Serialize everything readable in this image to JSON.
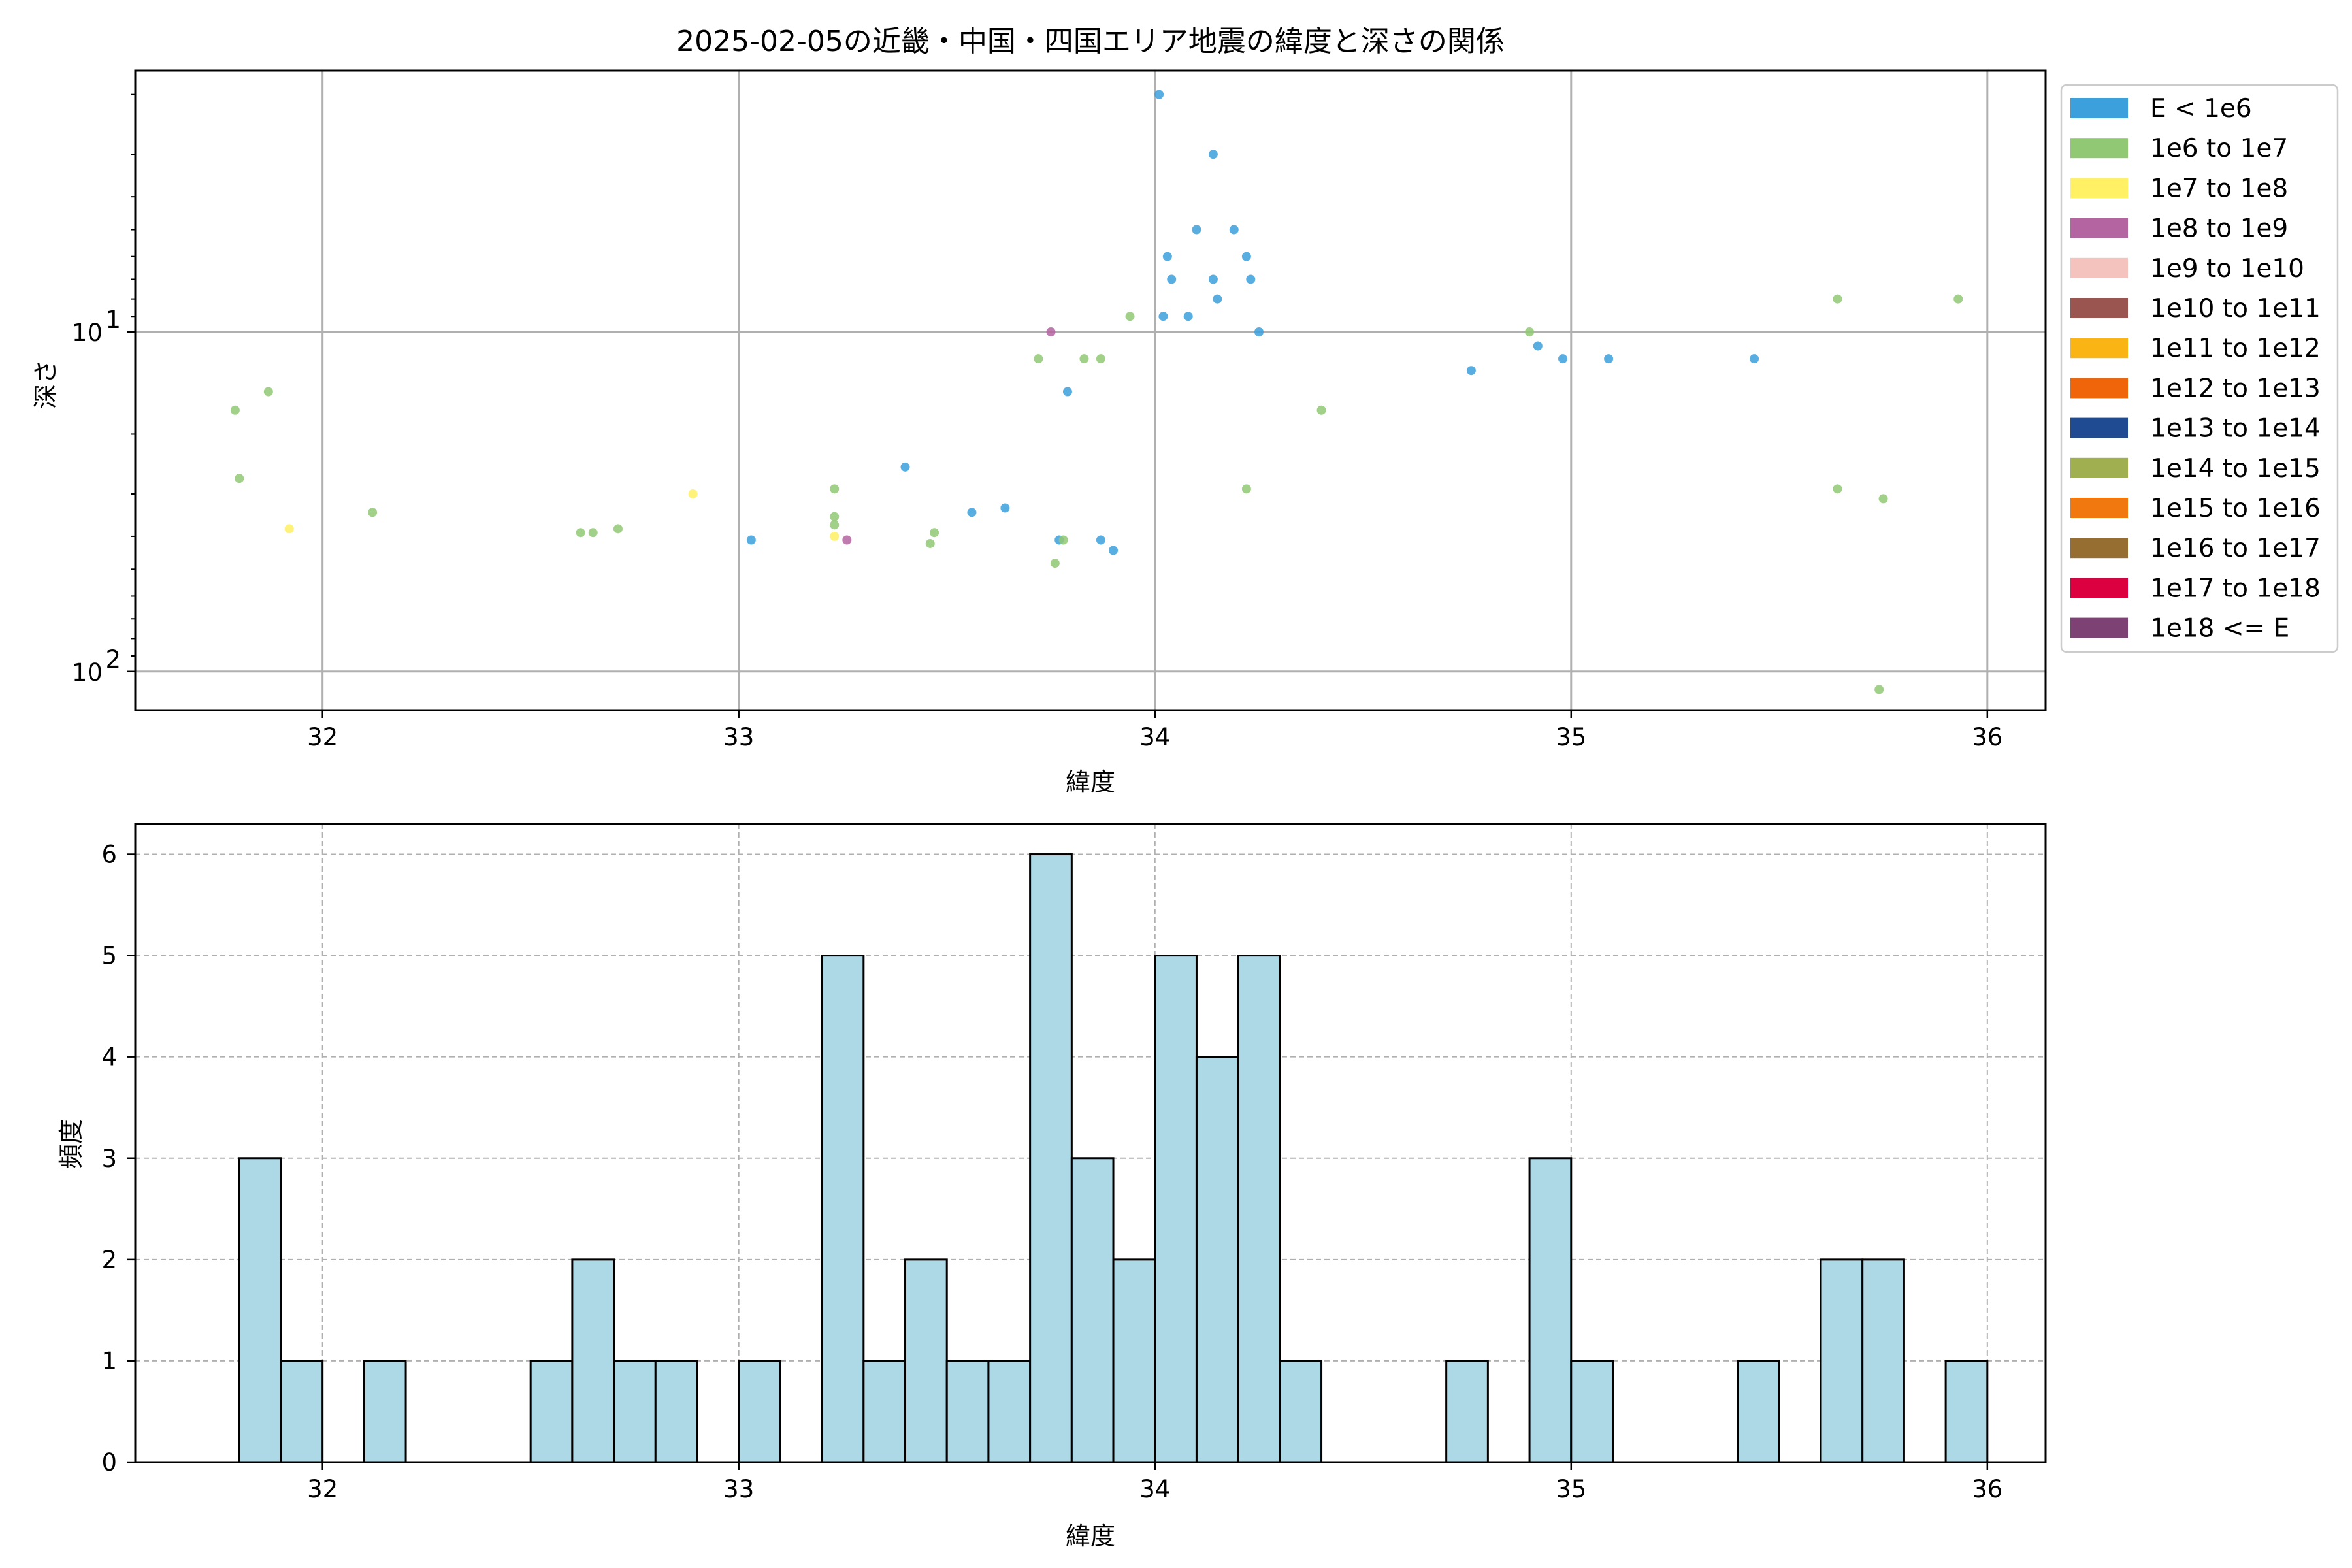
{
  "chart_data": [
    {
      "type": "scatter",
      "title": "2025-02-05の近畿・中国・四国エリア地震の緯度と深さの関係",
      "xlabel": "緯度",
      "ylabel": "深さ",
      "xlim": [
        31.55,
        36.14
      ],
      "ylim": [
        130,
        1.7
      ],
      "yscale": "log",
      "y_inverted": true,
      "grid": true,
      "xticks": [
        32,
        33,
        34,
        35,
        36
      ],
      "yticks": [
        {
          "value": 10,
          "base": "10",
          "exp": "1"
        },
        {
          "value": 100,
          "base": "10",
          "exp": "2"
        }
      ],
      "legend_position": "right-outside-top",
      "legend": [
        {
          "label": "E < 1e6",
          "color": "#3ca0dc"
        },
        {
          "label": "1e6 to 1e7",
          "color": "#91c873"
        },
        {
          "label": "1e7 to 1e8",
          "color": "#fff064"
        },
        {
          "label": "1e8 to 1e9",
          "color": "#b464a0"
        },
        {
          "label": "1e9 to 1e10",
          "color": "#f5c3be"
        },
        {
          "label": "1e10 to 1e11",
          "color": "#9b5550"
        },
        {
          "label": "1e11 to 1e12",
          "color": "#fab414"
        },
        {
          "label": "1e12 to 1e13",
          "color": "#f0640a"
        },
        {
          "label": "1e13 to 1e14",
          "color": "#1e4b91"
        },
        {
          "label": "1e14 to 1e15",
          "color": "#a0af50"
        },
        {
          "label": "1e15 to 1e16",
          "color": "#f0780f"
        },
        {
          "label": "1e16 to 1e17",
          "color": "#966e32"
        },
        {
          "label": "1e17 to 1e18",
          "color": "#dc0041"
        },
        {
          "label": "1e18 <= E",
          "color": "#7d4173"
        }
      ],
      "points": [
        {
          "x": 34.01,
          "y": 2,
          "c": 0
        },
        {
          "x": 34.14,
          "y": 3,
          "c": 0
        },
        {
          "x": 34.1,
          "y": 5,
          "c": 0
        },
        {
          "x": 34.19,
          "y": 5,
          "c": 0
        },
        {
          "x": 34.03,
          "y": 6,
          "c": 0
        },
        {
          "x": 34.22,
          "y": 6,
          "c": 0
        },
        {
          "x": 34.04,
          "y": 7,
          "c": 0
        },
        {
          "x": 34.14,
          "y": 7,
          "c": 0
        },
        {
          "x": 34.23,
          "y": 7,
          "c": 0
        },
        {
          "x": 34.15,
          "y": 8,
          "c": 0
        },
        {
          "x": 34.02,
          "y": 9,
          "c": 0
        },
        {
          "x": 34.08,
          "y": 9,
          "c": 0
        },
        {
          "x": 34.25,
          "y": 10,
          "c": 0
        },
        {
          "x": 34.92,
          "y": 11,
          "c": 0
        },
        {
          "x": 34.98,
          "y": 12,
          "c": 0
        },
        {
          "x": 35.09,
          "y": 12,
          "c": 0
        },
        {
          "x": 35.44,
          "y": 12,
          "c": 0
        },
        {
          "x": 34.76,
          "y": 13,
          "c": 0
        },
        {
          "x": 33.79,
          "y": 15,
          "c": 0
        },
        {
          "x": 33.4,
          "y": 25,
          "c": 0
        },
        {
          "x": 33.64,
          "y": 33,
          "c": 0
        },
        {
          "x": 33.56,
          "y": 34,
          "c": 0
        },
        {
          "x": 33.03,
          "y": 41,
          "c": 0
        },
        {
          "x": 33.77,
          "y": 41,
          "c": 0
        },
        {
          "x": 33.87,
          "y": 41,
          "c": 0
        },
        {
          "x": 33.9,
          "y": 44,
          "c": 0
        },
        {
          "x": 35.64,
          "y": 8,
          "c": 1
        },
        {
          "x": 35.93,
          "y": 8,
          "c": 1
        },
        {
          "x": 33.94,
          "y": 9,
          "c": 1
        },
        {
          "x": 34.9,
          "y": 10,
          "c": 1
        },
        {
          "x": 33.72,
          "y": 12,
          "c": 1
        },
        {
          "x": 33.83,
          "y": 12,
          "c": 1
        },
        {
          "x": 33.87,
          "y": 12,
          "c": 1
        },
        {
          "x": 31.87,
          "y": 15,
          "c": 1
        },
        {
          "x": 31.79,
          "y": 17,
          "c": 1
        },
        {
          "x": 34.4,
          "y": 17,
          "c": 1
        },
        {
          "x": 31.8,
          "y": 27,
          "c": 1
        },
        {
          "x": 33.23,
          "y": 29,
          "c": 1
        },
        {
          "x": 34.22,
          "y": 29,
          "c": 1
        },
        {
          "x": 35.64,
          "y": 29,
          "c": 1
        },
        {
          "x": 35.75,
          "y": 31,
          "c": 1
        },
        {
          "x": 32.12,
          "y": 34,
          "c": 1
        },
        {
          "x": 33.23,
          "y": 35,
          "c": 1
        },
        {
          "x": 33.23,
          "y": 37,
          "c": 1
        },
        {
          "x": 32.71,
          "y": 38,
          "c": 1
        },
        {
          "x": 32.62,
          "y": 39,
          "c": 1
        },
        {
          "x": 32.65,
          "y": 39,
          "c": 1
        },
        {
          "x": 33.47,
          "y": 39,
          "c": 1
        },
        {
          "x": 33.78,
          "y": 41,
          "c": 1
        },
        {
          "x": 33.46,
          "y": 42,
          "c": 1
        },
        {
          "x": 33.76,
          "y": 48,
          "c": 1
        },
        {
          "x": 35.74,
          "y": 113,
          "c": 1
        },
        {
          "x": 32.89,
          "y": 30,
          "c": 2
        },
        {
          "x": 31.92,
          "y": 38,
          "c": 2
        },
        {
          "x": 33.23,
          "y": 40,
          "c": 2
        },
        {
          "x": 33.75,
          "y": 10,
          "c": 3
        },
        {
          "x": 33.26,
          "y": 41,
          "c": 3
        }
      ]
    },
    {
      "type": "bar",
      "title": "",
      "xlabel": "緯度",
      "ylabel": "頻度",
      "xlim": [
        31.55,
        36.14
      ],
      "ylim": [
        0,
        6.3
      ],
      "grid": true,
      "xticks": [
        32,
        33,
        34,
        35,
        36
      ],
      "yticks": [
        0,
        1,
        2,
        3,
        4,
        5,
        6
      ],
      "bar_color": "#add8e6",
      "bin_width": 0.1,
      "bins_start": [
        31.8,
        31.9,
        32.1,
        32.5,
        32.6,
        32.7,
        32.8,
        33.0,
        33.2,
        33.3,
        33.4,
        33.5,
        33.6,
        33.7,
        33.8,
        33.9,
        34.0,
        34.1,
        34.2,
        34.3,
        34.7,
        34.9,
        35.0,
        35.4,
        35.6,
        35.7,
        35.9
      ],
      "values": [
        3,
        1,
        1,
        1,
        2,
        1,
        1,
        1,
        5,
        1,
        2,
        1,
        1,
        6,
        3,
        2,
        5,
        4,
        5,
        1,
        1,
        3,
        1,
        1,
        2,
        2,
        1
      ]
    }
  ]
}
